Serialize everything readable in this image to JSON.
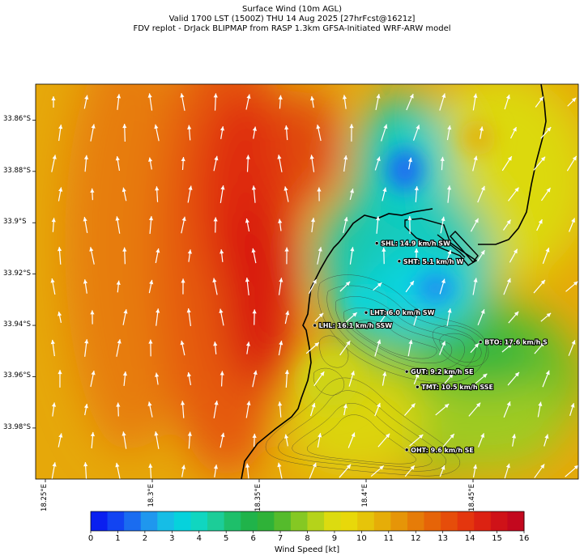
{
  "title": {
    "line1": "Surface Wind (10m AGL)",
    "line2": "Valid 1700 LST (1500Z) THU 14 Aug 2025 [27hrFcst@1621z]",
    "line3": "FDV replot - DrJack BLIPMAP from RASP 1.3km GFSA-Initiated WRF-ARW model"
  },
  "map": {
    "lat_labels": [
      "33.86°S",
      "33.88°S",
      "33.9°S",
      "33.92°S",
      "33.94°S",
      "33.96°S",
      "33.98°S"
    ],
    "lon_labels": [
      "18.25°E",
      "18.3°E",
      "18.35°E",
      "18.4°E",
      "18.45°E"
    ],
    "stations": [
      {
        "label": "SHL: 14.9 km/h SW",
        "lon": 18.405,
        "lat": -33.908
      },
      {
        "label": "SHT: 5.1 km/h W",
        "lon": 18.4155,
        "lat": -33.915
      },
      {
        "label": "LHT: 6.0 km/h SW",
        "lon": 18.4,
        "lat": -33.935
      },
      {
        "label": "LHL: 16.1 km/h SSW",
        "lon": 18.376,
        "lat": -33.94
      },
      {
        "label": "BTO: 17.6 km/h S",
        "lon": 18.4535,
        "lat": -33.9465
      },
      {
        "label": "GUT: 9.2 km/h SE",
        "lon": 18.419,
        "lat": -33.958
      },
      {
        "label": "TMT: 10.5 km/h SSE",
        "lon": 18.424,
        "lat": -33.964
      },
      {
        "label": "OHT: 9.6 km/h SE",
        "lon": 18.419,
        "lat": -33.9885
      }
    ]
  },
  "colorbar": {
    "title": "Wind Speed [kt]",
    "ticks": [
      "0",
      "1",
      "2",
      "3",
      "4",
      "5",
      "6",
      "7",
      "8",
      "9",
      "10",
      "11",
      "12",
      "13",
      "14",
      "15",
      "16"
    ],
    "colors": [
      "#0a1ff0",
      "#1244f2",
      "#1a6cf0",
      "#1f97ee",
      "#16bde6",
      "#06d2dc",
      "#10d6c0",
      "#1ccd98",
      "#1ebf6a",
      "#20b34a",
      "#2fb238",
      "#55bb2c",
      "#85c823",
      "#b5d31a",
      "#dcdb10",
      "#e8d80a",
      "#e6c40a",
      "#e6ad08",
      "#e69508",
      "#e67c08",
      "#e66408",
      "#e64d0a",
      "#e4360e",
      "#dc2212",
      "#cf1218",
      "#c3081e"
    ]
  }
}
